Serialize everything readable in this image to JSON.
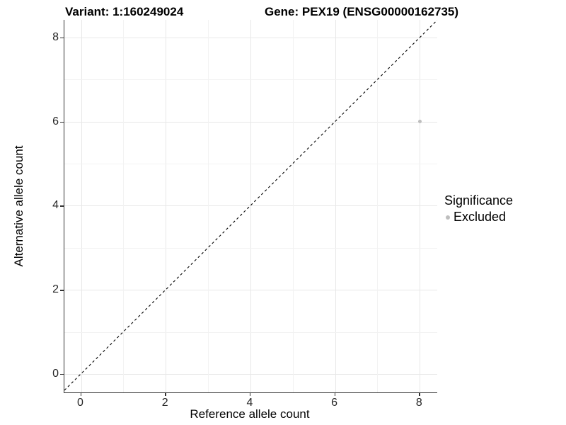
{
  "header": {
    "variant_title": "Variant: 1:160249024",
    "gene_title": "Gene: PEX19 (ENSG00000162735)"
  },
  "axes": {
    "x": {
      "label": "Reference allele count"
    },
    "y": {
      "label": "Alternative allele count"
    }
  },
  "legend": {
    "title": "Significance",
    "items": [
      {
        "label": "Excluded",
        "color": "#bebebe"
      }
    ]
  },
  "chart_data": {
    "type": "scatter",
    "title": "Variant: 1:160249024 | Gene: PEX19 (ENSG00000162735)",
    "xlabel": "Reference allele count",
    "ylabel": "Alternative allele count",
    "xlim": [
      -0.42,
      8.42
    ],
    "ylim": [
      -0.42,
      8.42
    ],
    "x_ticks": [
      0,
      2,
      4,
      6,
      8
    ],
    "y_ticks": [
      0,
      2,
      4,
      6,
      8
    ],
    "x_minor_ticks": [
      1,
      3,
      5,
      7
    ],
    "y_minor_ticks": [
      1,
      3,
      5,
      7
    ],
    "grid": "major and minor gridlines on white background",
    "legend_position": "right",
    "series": [
      {
        "name": "Excluded",
        "color": "#bebebe",
        "marker": "circle",
        "marker_size_px": 5,
        "points": [
          {
            "x": 8,
            "y": 6
          }
        ]
      }
    ],
    "reference_line": {
      "equation": "y = x",
      "style": "dashed",
      "color": "#000000"
    }
  },
  "colors": {
    "background": "#ffffff",
    "axis_line": "#333333",
    "major_grid": "#e8e8e8",
    "minor_grid": "#f2f2f2",
    "tick_text": "#262626",
    "point": "#bebebe"
  }
}
